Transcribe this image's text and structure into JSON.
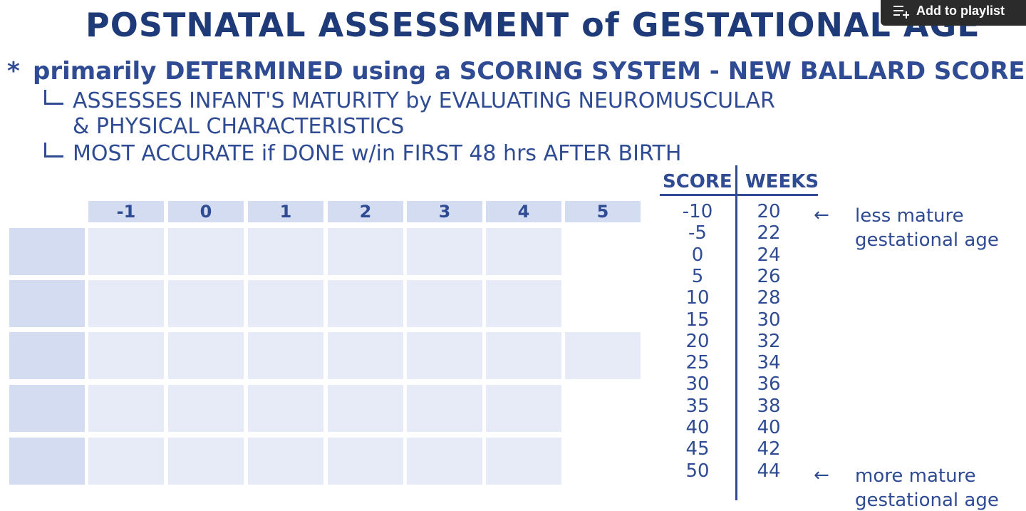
{
  "title": "POSTNATAL ASSESSMENT of GESTATIONAL AGE",
  "playlist_button": {
    "label": "Add to playlist",
    "icon": "playlist-add-icon"
  },
  "intro": {
    "star": "*",
    "text": "primarily DETERMINED using a SCORING SYSTEM - NEW BALLARD SCORE"
  },
  "sub_points": [
    {
      "line1": "ASSESSES INFANT'S MATURITY by EVALUATING NEUROMUSCULAR",
      "line2": "& PHYSICAL CHARACTERISTICS"
    },
    {
      "line1": "MOST ACCURATE if DONE w/in FIRST 48 hrs AFTER BIRTH"
    }
  ],
  "grid": {
    "column_headers": [
      "-1",
      "0",
      "1",
      "2",
      "3",
      "4",
      "5"
    ],
    "row_count": 5,
    "colors": {
      "header": "#d3dcf1",
      "cell": "#e6ebf7"
    }
  },
  "score_table": {
    "score_header": "SCORE",
    "weeks_header": "WEEKS",
    "scores": [
      "-10",
      "-5",
      "0",
      "5",
      "10",
      "15",
      "20",
      "25",
      "30",
      "35",
      "40",
      "45",
      "50"
    ],
    "weeks": [
      "20",
      "22",
      "24",
      "26",
      "28",
      "30",
      "32",
      "34",
      "36",
      "38",
      "40",
      "42",
      "44"
    ]
  },
  "notes": {
    "top_line1": "less mature",
    "top_line2": "gestational age",
    "bottom_line1": "more mature",
    "bottom_line2": "gestational age"
  },
  "colors": {
    "text": "#2f4b93",
    "title": "#1f3a78"
  }
}
